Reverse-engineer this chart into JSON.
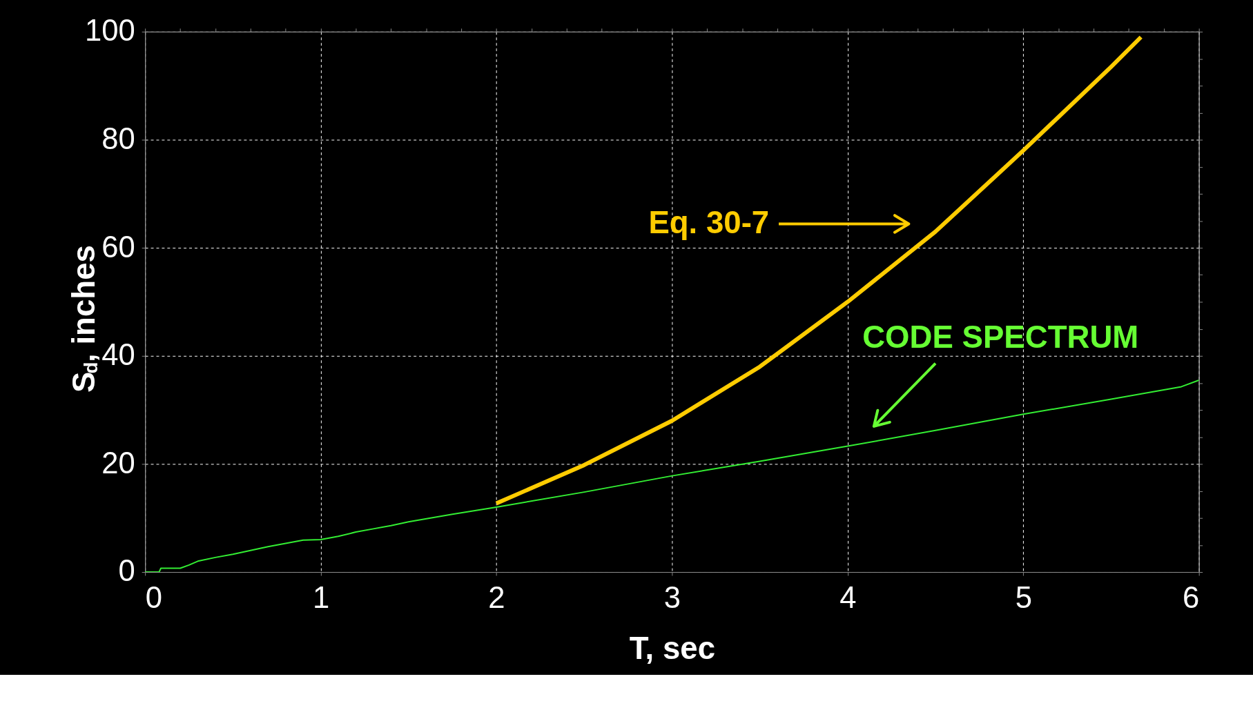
{
  "chart_data": {
    "type": "line",
    "xlabel": "T, sec",
    "ylabel": "S$_{d}$, inches",
    "xlim": [
      0,
      6
    ],
    "xticks": [
      0,
      1,
      2,
      3,
      4,
      5,
      6
    ],
    "ylim": [
      0,
      100
    ],
    "yticks": [
      0,
      20,
      40,
      60,
      80,
      100
    ],
    "grid": true,
    "line_style": "solid",
    "series": [
      {
        "color": "#ffcc00",
        "x": [
          2,
          2.5,
          3,
          3.5,
          4,
          4.5,
          5,
          5.5,
          5.67
        ],
        "values": [
          12.7,
          19.8,
          28,
          38,
          50,
          63,
          78,
          93.5,
          99
        ]
      },
      {
        "color": "#33ee33",
        "x": [
          0,
          0.08,
          0.09,
          0.2,
          0.25,
          0.3,
          0.4,
          0.5,
          0.6,
          0.7,
          0.8,
          0.9,
          1,
          1.1,
          1.2,
          1.3,
          1.4,
          1.5,
          1.75,
          2,
          2.5,
          3,
          3.5,
          4,
          4.5,
          5,
          5.5,
          5.9,
          6
        ],
        "values": [
          0,
          0,
          0.7,
          0.7,
          1.3,
          2,
          2.7,
          3.3,
          4,
          4.7,
          5.3,
          5.9,
          6,
          6.6,
          7.4,
          8,
          8.6,
          9.3,
          10.7,
          12,
          14.8,
          17.8,
          20.5,
          23.3,
          26.2,
          29.2,
          32,
          34.3,
          35.5
        ]
      }
    ],
    "annotations": [
      "Eq. 30-7",
      "CODE SPECTRUM"
    ]
  }
}
